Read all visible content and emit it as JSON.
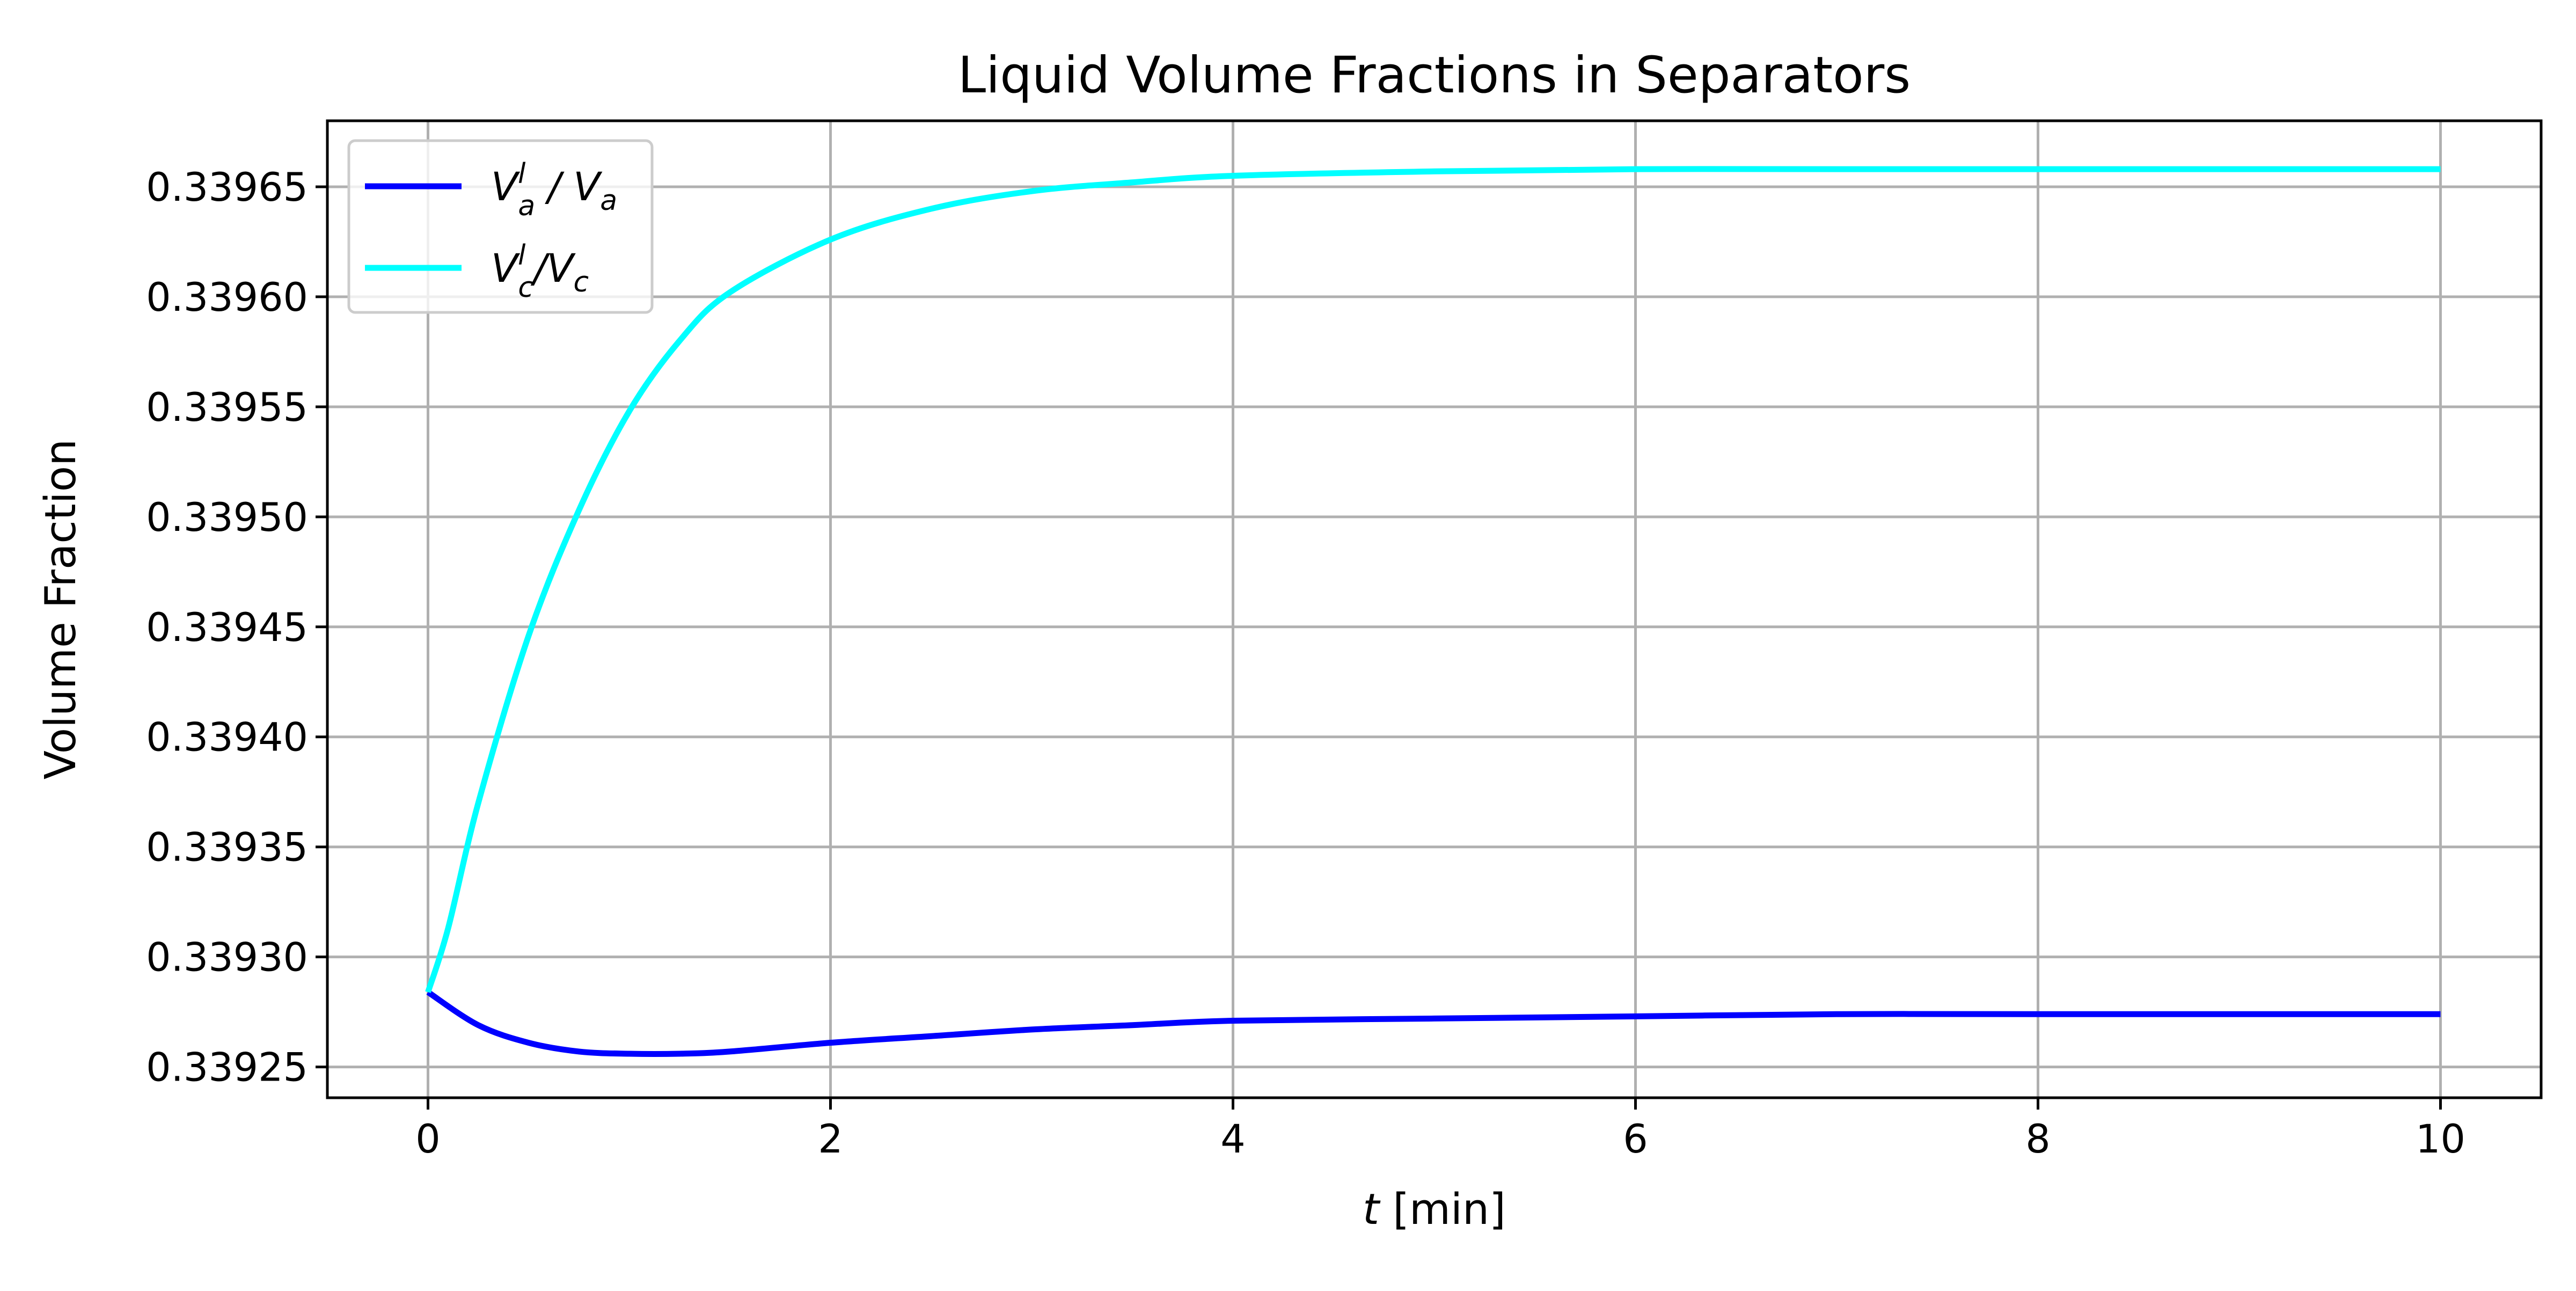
{
  "chart_data": {
    "type": "line",
    "title": "Liquid Volume Fractions in Separators",
    "xlabel": {
      "var": "t",
      "unit": " [min]"
    },
    "ylabel": "Volume Fraction",
    "xlim": [
      -0.5,
      10.5
    ],
    "ylim": [
      0.339236,
      0.33968
    ],
    "xticks": [
      0,
      2,
      4,
      6,
      8,
      10
    ],
    "yticks": [
      0.33925,
      0.3393,
      0.33935,
      0.3394,
      0.33945,
      0.3395,
      0.33955,
      0.3396,
      0.33965
    ],
    "ytick_labels": [
      "0.33925",
      "0.33930",
      "0.33935",
      "0.33940",
      "0.33945",
      "0.33950",
      "0.33955",
      "0.33960",
      "0.33965"
    ],
    "grid": true,
    "legend_position": "upper left",
    "series": [
      {
        "name": "V_a^l / V_a",
        "legend": {
          "base": "V",
          "sup": "l",
          "sub": "a",
          "rest_base": " / V",
          "rest_sub": "a"
        },
        "color": "#0000ff",
        "x": [
          0,
          0.25,
          0.5,
          0.75,
          1.0,
          1.25,
          1.5,
          2.0,
          2.5,
          3.0,
          3.5,
          4.0,
          5.0,
          6.0,
          7.0,
          8.0,
          9.0,
          10.0
        ],
        "y": [
          0.339284,
          0.339269,
          0.339261,
          0.339257,
          0.339256,
          0.339256,
          0.339257,
          0.339261,
          0.339264,
          0.339267,
          0.339269,
          0.339271,
          0.339272,
          0.339273,
          0.339274,
          0.339274,
          0.339274,
          0.339274
        ]
      },
      {
        "name": "V_c^l/V_c",
        "legend": {
          "base": "V",
          "sup": "l",
          "sub": "c",
          "rest_base": "/V",
          "rest_sub": "c"
        },
        "color": "#00ffff",
        "x": [
          0,
          0.1,
          0.25,
          0.5,
          0.75,
          1.0,
          1.25,
          1.5,
          2.0,
          2.5,
          3.0,
          3.5,
          4.0,
          5.0,
          6.0,
          7.0,
          8.0,
          9.0,
          10.0
        ],
        "y": [
          0.339284,
          0.339313,
          0.33937,
          0.339446,
          0.339503,
          0.339548,
          0.33958,
          0.339602,
          0.339626,
          0.33964,
          0.339648,
          0.339652,
          0.339655,
          0.339657,
          0.339658,
          0.339658,
          0.339658,
          0.339658,
          0.339658
        ]
      }
    ]
  }
}
